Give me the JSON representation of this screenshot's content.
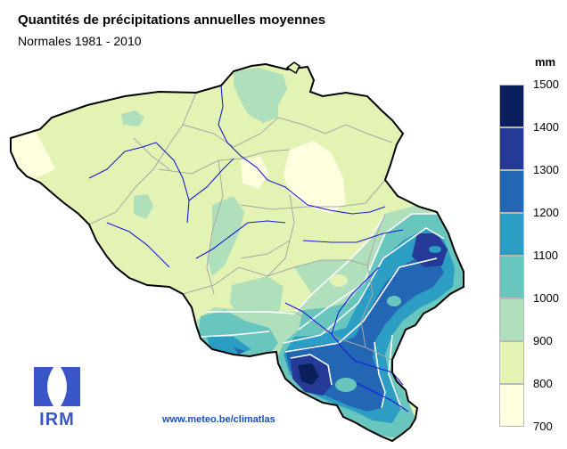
{
  "title": "Quantités de précipitations annuelles moyennes",
  "subtitle": "Normales 1981 - 2010",
  "legend": {
    "unit": "mm",
    "classes": [
      {
        "min": 1400,
        "max": 1500,
        "color": "#0b1f5c"
      },
      {
        "min": 1300,
        "max": 1400,
        "color": "#253a97"
      },
      {
        "min": 1200,
        "max": 1300,
        "color": "#2366b3"
      },
      {
        "min": 1100,
        "max": 1200,
        "color": "#2c9dc3"
      },
      {
        "min": 1000,
        "max": 1100,
        "color": "#68c6bf"
      },
      {
        "min": 900,
        "max": 1000,
        "color": "#b0e0bb"
      },
      {
        "min": 800,
        "max": 900,
        "color": "#e2f3b3"
      },
      {
        "min": 700,
        "max": 800,
        "color": "#ffffe0"
      }
    ],
    "ticks": [
      "1500",
      "1400",
      "1300",
      "1200",
      "1100",
      "1000",
      "900",
      "800",
      "700"
    ]
  },
  "map": {
    "country_fill": "#e2f3b3",
    "border_color": "#000000",
    "province_color": "#a8a8a8",
    "river_color": "#1a1adc"
  },
  "logo": {
    "text": "IRM",
    "color": "#3a55c8"
  },
  "source": "www.meteo.be/climatlas"
}
